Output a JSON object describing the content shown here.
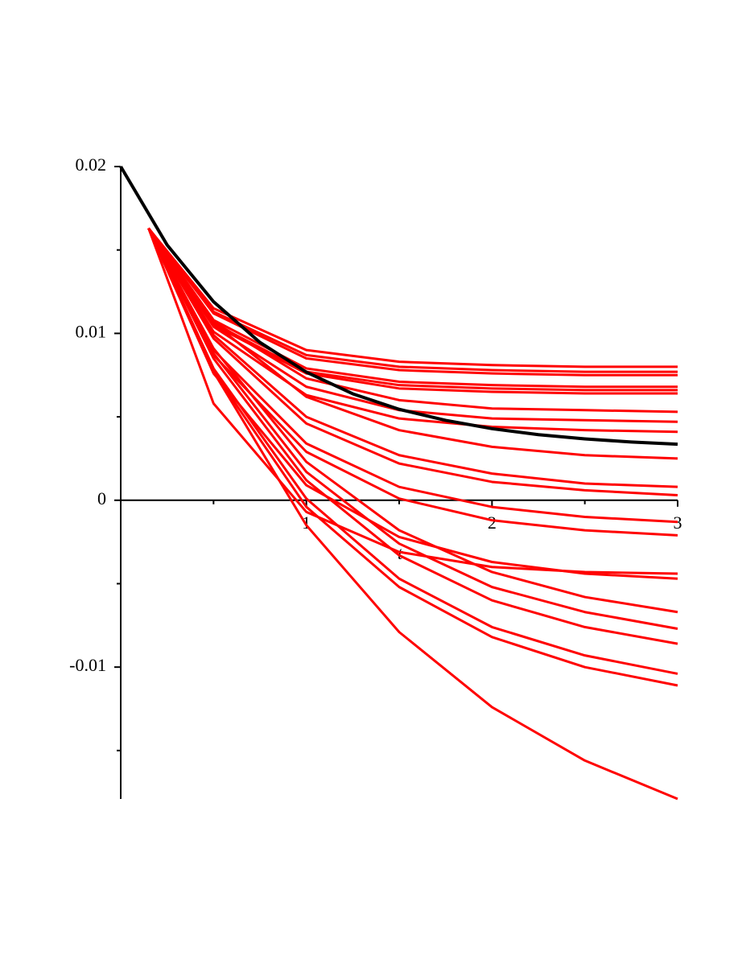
{
  "chart_data": {
    "type": "line",
    "x_label": "t",
    "xlim": [
      0,
      3
    ],
    "ylim": [
      -0.0179,
      0.02
    ],
    "xticks": [
      1,
      2,
      3
    ],
    "yticks": [
      -0.01,
      0,
      0.01,
      0.02
    ],
    "xminor_ticks": [
      0.5,
      1.5,
      2.5
    ],
    "yminor_ticks": [
      -0.015,
      -0.005,
      0.005,
      0.015
    ],
    "x": [
      0.15,
      0.5,
      1,
      1.5,
      2,
      2.5,
      3
    ],
    "series": [
      {
        "color": "#ff0000",
        "values": [
          0.0163,
          0.0115,
          0.009,
          0.0083,
          0.0081,
          0.008,
          0.008
        ]
      },
      {
        "color": "#ff0000",
        "values": [
          0.0163,
          0.0113,
          0.0087,
          0.008,
          0.0078,
          0.0077,
          0.0077
        ]
      },
      {
        "color": "#ff0000",
        "values": [
          0.0163,
          0.0112,
          0.0085,
          0.0078,
          0.0076,
          0.0075,
          0.0075
        ]
      },
      {
        "color": "#ff0000",
        "values": [
          0.0163,
          0.0108,
          0.0079,
          0.0071,
          0.0069,
          0.0068,
          0.0068
        ]
      },
      {
        "color": "#ff0000",
        "values": [
          0.0163,
          0.0106,
          0.0077,
          0.0069,
          0.0067,
          0.0066,
          0.0066
        ]
      },
      {
        "color": "#ff0000",
        "values": [
          0.0163,
          0.0105,
          0.0076,
          0.0067,
          0.0065,
          0.0064,
          0.0064
        ]
      },
      {
        "color": "#ff0000",
        "values": [
          0.0163,
          0.0107,
          0.0073,
          0.006,
          0.0055,
          0.0054,
          0.0053
        ]
      },
      {
        "color": "#ff0000",
        "values": [
          0.0163,
          0.0104,
          0.0068,
          0.0054,
          0.0049,
          0.0048,
          0.0047
        ]
      },
      {
        "color": "#ff0000",
        "values": [
          0.0163,
          0.0101,
          0.0063,
          0.0049,
          0.0044,
          0.0042,
          0.0041
        ]
      },
      {
        "color": "#ff0000",
        "values": [
          0.0163,
          0.0058,
          -0.0007,
          -0.0031,
          -0.004,
          -0.0043,
          -0.0044
        ]
      },
      {
        "color": "#ff0000",
        "values": [
          0.0163,
          0.0106,
          0.0062,
          0.0042,
          0.0032,
          0.0027,
          0.0025
        ]
      },
      {
        "color": "#ff0000",
        "values": [
          0.0163,
          0.0099,
          0.005,
          0.0027,
          0.0016,
          0.001,
          0.0008
        ]
      },
      {
        "color": "#ff0000",
        "values": [
          0.0163,
          0.0097,
          0.0046,
          0.0022,
          0.0011,
          0.0006,
          0.0003
        ]
      },
      {
        "color": "#ff0000",
        "values": [
          0.0163,
          0.009,
          0.0034,
          0.0008,
          -0.0004,
          -0.001,
          -0.0013
        ]
      },
      {
        "color": "#ff0000",
        "values": [
          0.0163,
          0.0087,
          0.0029,
          0.0001,
          -0.0012,
          -0.0018,
          -0.0021
        ]
      },
      {
        "color": "#ff0000",
        "values": [
          0.0163,
          0.0076,
          0.0009,
          -0.0022,
          -0.0037,
          -0.0044,
          -0.0047
        ]
      },
      {
        "color": "#ff0000",
        "values": [
          0.0163,
          0.0091,
          0.0023,
          -0.0018,
          -0.0043,
          -0.0058,
          -0.0067
        ]
      },
      {
        "color": "#ff0000",
        "values": [
          0.0163,
          0.0088,
          0.0017,
          -0.0026,
          -0.0052,
          -0.0067,
          -0.0077
        ]
      },
      {
        "color": "#ff0000",
        "values": [
          0.0163,
          0.0085,
          0.0012,
          -0.0033,
          -0.006,
          -0.0076,
          -0.0086
        ]
      },
      {
        "color": "#ff0000",
        "values": [
          0.0163,
          0.0079,
          0.0001,
          -0.0047,
          -0.0076,
          -0.0093,
          -0.0104
        ]
      },
      {
        "color": "#ff0000",
        "values": [
          0.0163,
          0.0077,
          -0.0004,
          -0.0052,
          -0.0082,
          -0.01,
          -0.0111
        ]
      },
      {
        "color": "#ff0000",
        "values": [
          0.0163,
          0.0077,
          -0.0015,
          -0.0079,
          -0.0124,
          -0.0156,
          -0.0179
        ]
      },
      {
        "color": "#000000",
        "width": 4,
        "x": [
          0,
          0.25,
          0.5,
          0.75,
          1,
          1.25,
          1.5,
          1.75,
          2,
          2.25,
          2.5,
          2.75,
          3
        ],
        "values": [
          0.02,
          0.0153,
          0.0119,
          0.00946,
          0.00768,
          0.00638,
          0.00545,
          0.00479,
          0.00429,
          0.00393,
          0.00368,
          0.00349,
          0.00336
        ]
      }
    ]
  }
}
